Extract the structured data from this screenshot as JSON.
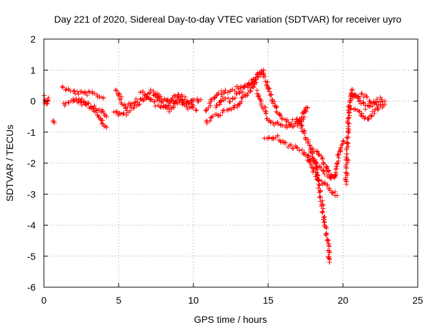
{
  "chart_data": {
    "type": "scatter",
    "title": "Day 221 of 2020, Sidereal Day-to-day VTEC variation (SDTVAR) for receiver uyro",
    "xlabel": "GPS time / hours",
    "ylabel": "SDTVAR / TECUs",
    "xlim": [
      0,
      25
    ],
    "ylim": [
      -6,
      2
    ],
    "xticks": [
      "0",
      "5",
      "10",
      "15",
      "20",
      "25"
    ],
    "yticks": [
      "2",
      "1",
      "0",
      "-1",
      "-2",
      "-3",
      "-4",
      "-5",
      "-6"
    ],
    "grid": true,
    "marker": "+",
    "color": "#ff0000",
    "series": [
      {
        "name": "SDTVAR",
        "segments": [
          {
            "x": [
              0.0,
              0.1,
              0.2,
              0.3
            ],
            "y": [
              0.15,
              0.0,
              -0.1,
              0.1
            ]
          },
          {
            "x": [
              0.6,
              0.7
            ],
            "y": [
              -0.6,
              -0.7
            ]
          },
          {
            "x": [
              1.2,
              1.6,
              2.0,
              2.5,
              3.0,
              3.5,
              4.0
            ],
            "y": [
              0.45,
              0.35,
              0.3,
              0.25,
              0.25,
              0.2,
              0.1
            ]
          },
          {
            "x": [
              1.3,
              1.8,
              2.3,
              2.8,
              3.3,
              3.8,
              4.2
            ],
            "y": [
              -0.1,
              0.0,
              0.1,
              0.0,
              -0.2,
              -0.3,
              -0.5
            ]
          },
          {
            "x": [
              2.0,
              2.5,
              3.0,
              3.5,
              3.8,
              4.0,
              4.2
            ],
            "y": [
              0.05,
              -0.05,
              -0.2,
              -0.3,
              -0.6,
              -0.8,
              -0.85
            ]
          },
          {
            "x": [
              4.8,
              5.0,
              5.2,
              5.5,
              6.0,
              6.5
            ],
            "y": [
              0.35,
              0.2,
              0.0,
              -0.2,
              0.0,
              0.05
            ]
          },
          {
            "x": [
              4.7,
              5.0,
              5.5,
              6.0,
              6.4
            ],
            "y": [
              -0.3,
              -0.45,
              -0.4,
              -0.2,
              -0.1
            ]
          },
          {
            "x": [
              6.5,
              7.0,
              7.5,
              8.0,
              8.5,
              9.0,
              9.5,
              10.0,
              10.5
            ],
            "y": [
              0.35,
              0.1,
              -0.1,
              -0.2,
              -0.1,
              0.0,
              -0.1,
              0.0,
              0.05
            ]
          },
          {
            "x": [
              6.6,
              7.2,
              7.8,
              8.4,
              9.0,
              9.6,
              10.2
            ],
            "y": [
              0.0,
              0.3,
              0.0,
              -0.3,
              0.1,
              -0.2,
              -0.3
            ]
          },
          {
            "x": [
              7.4,
              7.8,
              8.2,
              8.8,
              9.4,
              10.0
            ],
            "y": [
              0.25,
              0.1,
              -0.05,
              0.2,
              0.1,
              -0.15
            ]
          },
          {
            "x": [
              10.8,
              11.2,
              11.6,
              12.0,
              12.4,
              12.8,
              13.2,
              13.6,
              14.0,
              14.4,
              14.7
            ],
            "y": [
              -0.3,
              0.0,
              0.2,
              0.3,
              0.35,
              0.4,
              0.45,
              0.5,
              0.7,
              0.9,
              1.0
            ]
          },
          {
            "x": [
              10.8,
              11.3,
              11.8,
              12.3,
              12.8,
              13.3,
              13.8,
              14.2
            ],
            "y": [
              -0.7,
              -0.5,
              -0.4,
              -0.3,
              -0.2,
              0.1,
              0.3,
              0.6
            ]
          },
          {
            "x": [
              11.5,
              12.0,
              12.5,
              13.0,
              13.5,
              14.0
            ],
            "y": [
              -0.2,
              0.1,
              0.0,
              0.25,
              0.45,
              0.6
            ]
          },
          {
            "x": [
              14.0,
              14.3,
              14.6,
              14.9,
              15.2,
              15.6,
              16.0,
              16.5,
              17.0,
              17.5
            ],
            "y": [
              0.55,
              0.8,
              0.9,
              0.6,
              0.1,
              -0.3,
              -0.6,
              -0.7,
              -0.6,
              -0.3
            ]
          },
          {
            "x": [
              14.2,
              14.5,
              14.8,
              15.0,
              15.3,
              15.7,
              16.2,
              16.7,
              17.2,
              17.6
            ],
            "y": [
              0.3,
              0.0,
              -0.3,
              -0.6,
              -0.7,
              -0.75,
              -0.8,
              -0.8,
              -0.7,
              -0.2
            ]
          },
          {
            "x": [
              14.8,
              15.2,
              15.6,
              16.0,
              16.4,
              16.8,
              17.2,
              17.6,
              18.0,
              18.4,
              18.8,
              19.2
            ],
            "y": [
              -1.15,
              -1.2,
              -1.15,
              -1.3,
              -1.45,
              -1.5,
              -1.6,
              -1.75,
              -1.95,
              -2.1,
              -2.3,
              -2.5
            ]
          },
          {
            "x": [
              17.0,
              17.4,
              17.8,
              18.2,
              18.4,
              18.6,
              18.8,
              19.0,
              19.1
            ],
            "y": [
              -0.6,
              -1.0,
              -1.5,
              -2.1,
              -2.8,
              -3.3,
              -4.0,
              -4.6,
              -5.2
            ]
          },
          {
            "x": [
              17.6,
              18.0,
              18.4,
              18.8,
              19.2,
              19.6
            ],
            "y": [
              -1.8,
              -2.2,
              -2.6,
              -2.7,
              -2.9,
              -3.05
            ]
          },
          {
            "x": [
              17.8,
              18.2,
              18.6,
              19.0,
              19.4,
              19.7,
              20.0
            ],
            "y": [
              -1.5,
              -1.6,
              -1.9,
              -2.2,
              -2.5,
              -1.8,
              -1.3
            ]
          },
          {
            "x": [
              20.2,
              20.4,
              20.6,
              21.0,
              21.5,
              22.0,
              22.5,
              22.8
            ],
            "y": [
              -2.7,
              -0.2,
              0.35,
              0.1,
              -0.2,
              -0.1,
              0.05,
              0.0
            ]
          },
          {
            "x": [
              20.4,
              20.8,
              21.2,
              21.6,
              22.0,
              22.4,
              22.8
            ],
            "y": [
              -0.3,
              -0.2,
              -0.45,
              -0.6,
              -0.4,
              -0.2,
              -0.1
            ]
          },
          {
            "x": [
              20.5,
              21.0,
              21.5,
              22.0,
              22.5
            ],
            "y": [
              0.1,
              0.2,
              0.15,
              -0.05,
              -0.15
            ]
          }
        ]
      }
    ]
  }
}
